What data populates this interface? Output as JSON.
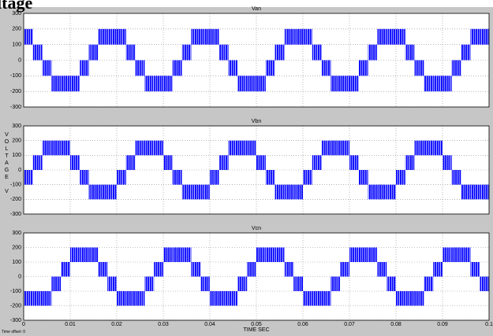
{
  "title": "ltage",
  "ylabel": "VOLTAGE V",
  "xlabel": "TIME SEC",
  "time_offset": "Time offset:  0",
  "chart_data": [
    {
      "type": "band",
      "title": "Van",
      "color": "#0000ff",
      "xlim": [
        0,
        0.1
      ],
      "ylim": [
        -300,
        300
      ],
      "grid": true,
      "xticks": [
        0,
        0.01,
        0.02,
        0.03,
        0.04,
        0.05,
        0.06,
        0.07,
        0.08,
        0.09,
        0.1
      ],
      "yticks": [
        -300,
        -200,
        -100,
        0,
        100,
        200,
        300
      ],
      "x": [
        0,
        0.002,
        0.004,
        0.006,
        0.008,
        0.01,
        0.012,
        0.014,
        0.016,
        0.018,
        0.02,
        0.022,
        0.024,
        0.026,
        0.028,
        0.03,
        0.032,
        0.034,
        0.036,
        0.038,
        0.04,
        0.042,
        0.044,
        0.046,
        0.048,
        0.05,
        0.052,
        0.054,
        0.056,
        0.058,
        0.06,
        0.062,
        0.064,
        0.066,
        0.068,
        0.07,
        0.072,
        0.074,
        0.076,
        0.078,
        0.08,
        0.082,
        0.084,
        0.086,
        0.088,
        0.09,
        0.092,
        0.094,
        0.096,
        0.098
      ],
      "high": [
        200,
        100,
        0,
        -100,
        -100,
        -100,
        0,
        100,
        200,
        200,
        200,
        100,
        0,
        -100,
        -100,
        -100,
        0,
        100,
        200,
        200,
        200,
        100,
        0,
        -100,
        -100,
        -100,
        0,
        100,
        200,
        200,
        200,
        100,
        0,
        -100,
        -100,
        -100,
        0,
        100,
        200,
        200,
        200,
        100,
        0,
        -100,
        -100,
        -100,
        0,
        100,
        200,
        200
      ],
      "low": [
        100,
        0,
        -100,
        -200,
        -200,
        -200,
        -100,
        0,
        100,
        100,
        100,
        0,
        -100,
        -200,
        -200,
        -200,
        -100,
        0,
        100,
        100,
        100,
        0,
        -100,
        -200,
        -200,
        -200,
        -100,
        0,
        100,
        100,
        100,
        0,
        -100,
        -200,
        -200,
        -200,
        -100,
        0,
        100,
        100,
        100,
        0,
        -100,
        -200,
        -200,
        -200,
        -100,
        0,
        100,
        100
      ]
    },
    {
      "type": "band",
      "title": "Vbn",
      "color": "#0000ff",
      "xlim": [
        0,
        0.1
      ],
      "ylim": [
        -300,
        300
      ],
      "grid": true,
      "xticks": [
        0,
        0.01,
        0.02,
        0.03,
        0.04,
        0.05,
        0.06,
        0.07,
        0.08,
        0.09,
        0.1
      ],
      "yticks": [
        -300,
        -200,
        -100,
        0,
        100,
        200,
        300
      ],
      "x": [
        0,
        0.002,
        0.004,
        0.006,
        0.008,
        0.01,
        0.012,
        0.014,
        0.016,
        0.018,
        0.02,
        0.022,
        0.024,
        0.026,
        0.028,
        0.03,
        0.032,
        0.034,
        0.036,
        0.038,
        0.04,
        0.042,
        0.044,
        0.046,
        0.048,
        0.05,
        0.052,
        0.054,
        0.056,
        0.058,
        0.06,
        0.062,
        0.064,
        0.066,
        0.068,
        0.07,
        0.072,
        0.074,
        0.076,
        0.078,
        0.08,
        0.082,
        0.084,
        0.086,
        0.088,
        0.09,
        0.092,
        0.094,
        0.096,
        0.098
      ],
      "high": [
        0,
        100,
        200,
        200,
        200,
        100,
        0,
        -100,
        -100,
        -100,
        0,
        100,
        200,
        200,
        200,
        100,
        0,
        -100,
        -100,
        -100,
        0,
        100,
        200,
        200,
        200,
        100,
        0,
        -100,
        -100,
        -100,
        0,
        100,
        200,
        200,
        200,
        100,
        0,
        -100,
        -100,
        -100,
        0,
        100,
        200,
        200,
        200,
        100,
        0,
        -100,
        -100,
        -100
      ],
      "low": [
        -100,
        0,
        100,
        100,
        100,
        0,
        -100,
        -200,
        -200,
        -200,
        -100,
        0,
        100,
        100,
        100,
        0,
        -100,
        -200,
        -200,
        -200,
        -100,
        0,
        100,
        100,
        100,
        0,
        -100,
        -200,
        -200,
        -200,
        -100,
        0,
        100,
        100,
        100,
        0,
        -100,
        -200,
        -200,
        -200,
        -100,
        0,
        100,
        100,
        100,
        0,
        -100,
        -200,
        -200,
        -200
      ]
    },
    {
      "type": "band",
      "title": "Vcn",
      "color": "#0000ff",
      "xlim": [
        0,
        0.1
      ],
      "ylim": [
        -300,
        300
      ],
      "grid": true,
      "xticks": [
        0,
        0.01,
        0.02,
        0.03,
        0.04,
        0.05,
        0.06,
        0.07,
        0.08,
        0.09,
        0.1
      ],
      "yticks": [
        -300,
        -200,
        -100,
        0,
        100,
        200,
        300
      ],
      "x": [
        0,
        0.002,
        0.004,
        0.006,
        0.008,
        0.01,
        0.012,
        0.014,
        0.016,
        0.018,
        0.02,
        0.022,
        0.024,
        0.026,
        0.028,
        0.03,
        0.032,
        0.034,
        0.036,
        0.038,
        0.04,
        0.042,
        0.044,
        0.046,
        0.048,
        0.05,
        0.052,
        0.054,
        0.056,
        0.058,
        0.06,
        0.062,
        0.064,
        0.066,
        0.068,
        0.07,
        0.072,
        0.074,
        0.076,
        0.078,
        0.08,
        0.082,
        0.084,
        0.086,
        0.088,
        0.09,
        0.092,
        0.094,
        0.096,
        0.098
      ],
      "high": [
        -100,
        -100,
        -100,
        0,
        100,
        200,
        200,
        200,
        100,
        0,
        -100,
        -100,
        -100,
        0,
        100,
        200,
        200,
        200,
        100,
        0,
        -100,
        -100,
        -100,
        0,
        100,
        200,
        200,
        200,
        100,
        0,
        -100,
        -100,
        -100,
        0,
        100,
        200,
        200,
        200,
        100,
        0,
        -100,
        -100,
        -100,
        0,
        100,
        200,
        200,
        200,
        100,
        0
      ],
      "low": [
        -200,
        -200,
        -200,
        -100,
        0,
        100,
        100,
        100,
        0,
        -100,
        -200,
        -200,
        -200,
        -100,
        0,
        100,
        100,
        100,
        0,
        -100,
        -200,
        -200,
        -200,
        -100,
        0,
        100,
        100,
        100,
        0,
        -100,
        -200,
        -200,
        -200,
        -100,
        0,
        100,
        100,
        100,
        0,
        -100,
        -200,
        -200,
        -200,
        -100,
        0,
        100,
        100,
        100,
        0,
        -100
      ]
    }
  ]
}
